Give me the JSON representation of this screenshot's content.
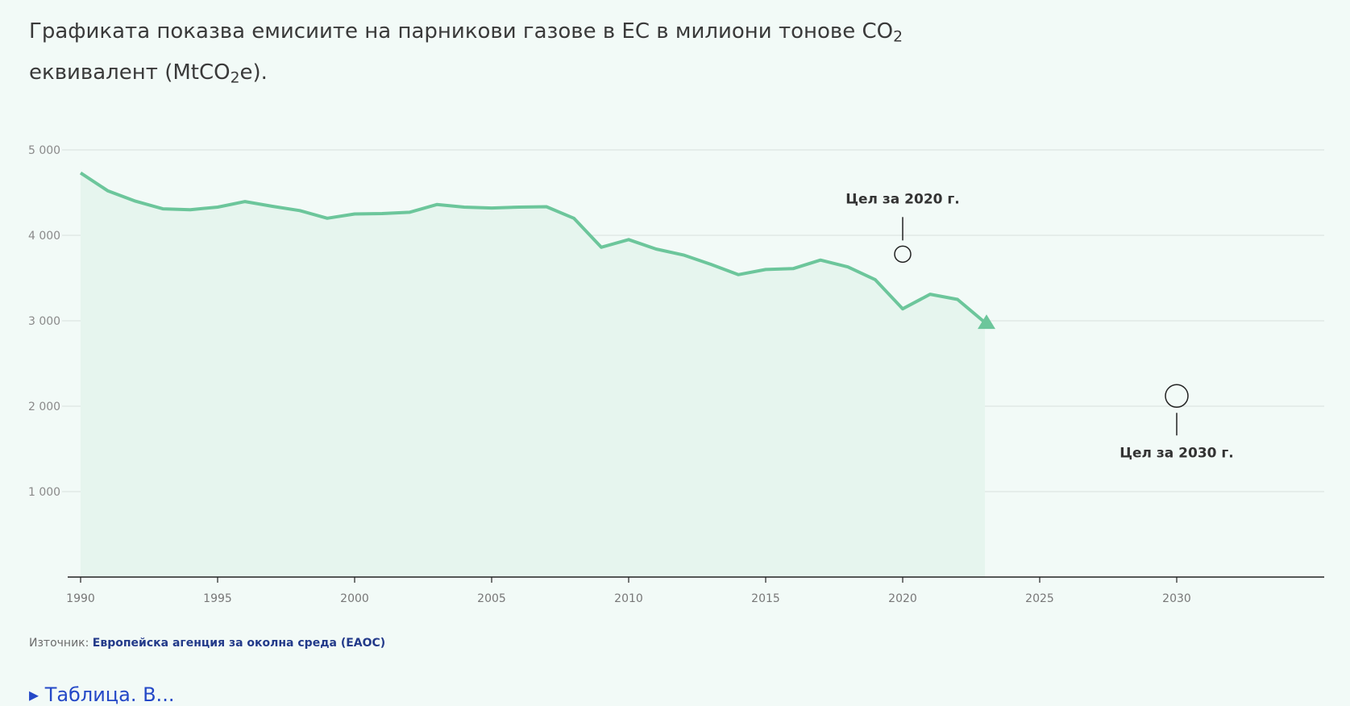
{
  "intro": {
    "line1": "Графиката показва емисиите на парникови газове в ЕС в милиони тонове CO",
    "line1_sub": "2",
    "line2_a": "еквивалент (MtCO",
    "line2_sub": "2",
    "line2_b": "e)."
  },
  "source": {
    "prefix": "Източник: ",
    "link_text": "Европейска агенция за околна среда (ЕАОС)"
  },
  "table_toggle": {
    "icon": "caret-right-icon",
    "label": "Таблица. В..."
  },
  "colors": {
    "line": "#6cc69b",
    "area": "#e6f5ee",
    "grid": "#dde5e2",
    "axis": "#222222",
    "marker": "#222222"
  },
  "chart_data": {
    "type": "area",
    "grid": true,
    "ylim": [
      0,
      5000
    ],
    "xlim": [
      1990,
      2035
    ],
    "yticks": [
      {
        "value": 1000,
        "label": "1 000"
      },
      {
        "value": 2000,
        "label": "2 000"
      },
      {
        "value": 3000,
        "label": "3 000"
      },
      {
        "value": 4000,
        "label": "4 000"
      },
      {
        "value": 5000,
        "label": "5 000"
      }
    ],
    "xticks": [
      {
        "value": 1990,
        "label": "1990"
      },
      {
        "value": 1995,
        "label": "1995"
      },
      {
        "value": 2000,
        "label": "2000"
      },
      {
        "value": 2005,
        "label": "2005"
      },
      {
        "value": 2010,
        "label": "2010"
      },
      {
        "value": 2015,
        "label": "2015"
      },
      {
        "value": 2020,
        "label": "2020"
      },
      {
        "value": 2025,
        "label": "2025"
      },
      {
        "value": 2030,
        "label": "2030"
      }
    ],
    "x": [
      1990,
      1991,
      1992,
      1993,
      1994,
      1995,
      1996,
      1997,
      1998,
      1999,
      2000,
      2001,
      2002,
      2003,
      2004,
      2005,
      2006,
      2007,
      2008,
      2009,
      2010,
      2011,
      2012,
      2013,
      2014,
      2015,
      2016,
      2017,
      2018,
      2019,
      2020,
      2021,
      2022,
      2023
    ],
    "values": [
      4730,
      4520,
      4400,
      4310,
      4300,
      4330,
      4395,
      4340,
      4290,
      4200,
      4250,
      4255,
      4270,
      4360,
      4330,
      4320,
      4330,
      4335,
      4200,
      3860,
      3950,
      3840,
      3770,
      3660,
      3540,
      3600,
      3610,
      3710,
      3630,
      3480,
      3140,
      3310,
      3250,
      2980
    ],
    "annotations": [
      {
        "label": "Цел за 2020 г.",
        "x": 2020,
        "y": 3780,
        "position": "above",
        "marker": "small-circle"
      },
      {
        "label": "Цел за 2030 г.",
        "x": 2030,
        "y": 2120,
        "position": "below",
        "marker": "large-circle"
      }
    ]
  }
}
